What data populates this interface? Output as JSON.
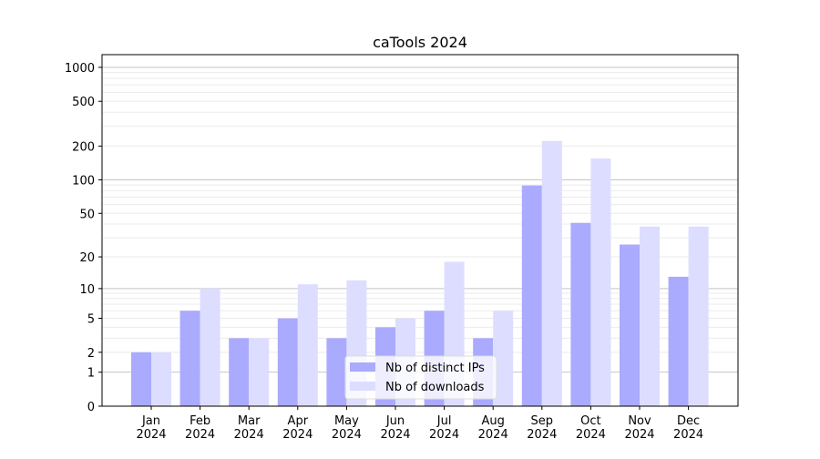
{
  "chart_data": {
    "type": "bar",
    "title": "caTools 2024",
    "xlabel": "",
    "ylabel": "",
    "yscale": "log10(y+1)",
    "ylim": [
      0,
      1200
    ],
    "yticks": [
      0,
      1,
      2,
      5,
      10,
      20,
      50,
      100,
      200,
      500,
      1000
    ],
    "grid": true,
    "legend_position": "bottom-center",
    "categories": [
      "Jan\n2024",
      "Feb\n2024",
      "Mar\n2024",
      "Apr\n2024",
      "May\n2024",
      "Jun\n2024",
      "Jul\n2024",
      "Aug\n2024",
      "Sep\n2024",
      "Oct\n2024",
      "Nov\n2024",
      "Dec\n2024"
    ],
    "series": [
      {
        "name": "Nb of distinct IPs",
        "color": "#aaaaff",
        "values": [
          2,
          6,
          3,
          5,
          3,
          4,
          6,
          3,
          89,
          41,
          26,
          13
        ]
      },
      {
        "name": "Nb of downloads",
        "color": "#ddddff",
        "values": [
          2,
          10,
          3,
          11,
          12,
          5,
          18,
          6,
          222,
          155,
          38,
          38
        ]
      }
    ]
  }
}
